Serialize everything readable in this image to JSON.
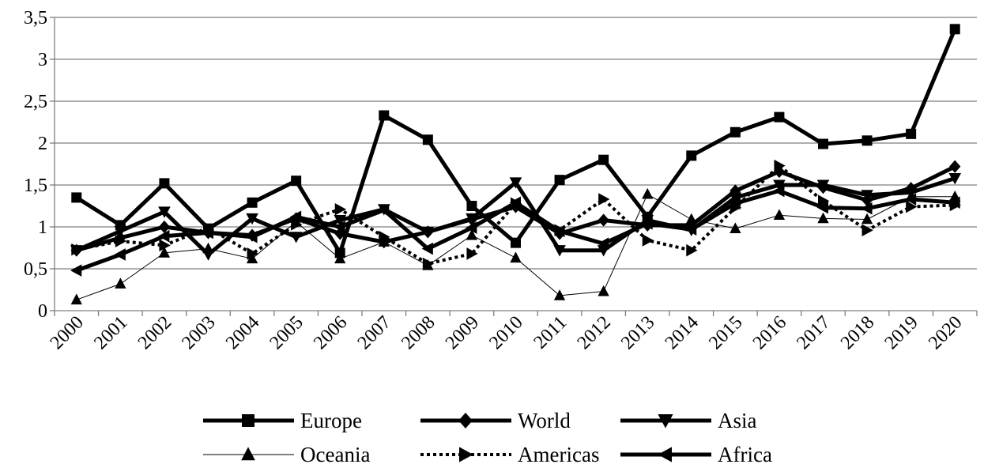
{
  "chart_data": {
    "type": "line",
    "title": "",
    "xlabel": "",
    "ylabel": "",
    "categories": [
      "2000",
      "2001",
      "2002",
      "2003",
      "2004",
      "2005",
      "2006",
      "2007",
      "2008",
      "2009",
      "2010",
      "2011",
      "2012",
      "2013",
      "2014",
      "2015",
      "2016",
      "2017",
      "2018",
      "2019",
      "2020"
    ],
    "ylim": [
      0,
      3.5
    ],
    "yticks": [
      0,
      0.5,
      1,
      1.5,
      2,
      2.5,
      3,
      3.5
    ],
    "ytick_labels": [
      "0",
      "0,5",
      "1",
      "1,5",
      "2",
      "2,5",
      "3",
      "3,5"
    ],
    "grid": "horizontal",
    "legend_position": "bottom",
    "series": [
      {
        "name": "Europe",
        "marker": "square",
        "line": "thick",
        "values": [
          1.35,
          1.02,
          1.52,
          0.98,
          1.29,
          1.55,
          0.69,
          2.33,
          2.04,
          1.25,
          0.81,
          1.56,
          1.8,
          1.12,
          1.85,
          2.13,
          2.31,
          1.99,
          2.03,
          2.11,
          3.36
        ]
      },
      {
        "name": "World",
        "marker": "diamond",
        "line": "thick",
        "values": [
          0.72,
          0.87,
          1.0,
          0.93,
          0.9,
          1.1,
          0.92,
          0.82,
          0.94,
          1.09,
          1.24,
          0.92,
          1.08,
          1.02,
          1.02,
          1.43,
          1.66,
          1.47,
          1.32,
          1.46,
          1.72
        ]
      },
      {
        "name": "Asia",
        "marker": "triangle-down",
        "line": "thick",
        "values": [
          0.72,
          0.95,
          1.18,
          0.67,
          1.1,
          0.88,
          1.08,
          1.21,
          0.94,
          1.1,
          1.53,
          0.72,
          0.72,
          1.08,
          0.96,
          1.35,
          1.5,
          1.5,
          1.38,
          1.41,
          1.58
        ]
      },
      {
        "name": "Oceania",
        "marker": "triangle-up",
        "line": "thin",
        "values": [
          0.13,
          0.32,
          0.69,
          0.74,
          0.62,
          1.06,
          0.62,
          0.82,
          0.54,
          0.9,
          0.63,
          0.18,
          0.23,
          1.39,
          1.09,
          0.98,
          1.14,
          1.1,
          1.09,
          1.36,
          1.36
        ]
      },
      {
        "name": "Americas",
        "marker": "triangle-right",
        "line": "dotted",
        "values": [
          0.73,
          0.83,
          0.78,
          0.99,
          0.68,
          1.03,
          1.21,
          0.88,
          0.56,
          0.68,
          1.28,
          0.96,
          1.33,
          0.84,
          0.72,
          1.23,
          1.73,
          1.31,
          0.96,
          1.24,
          1.26
        ]
      },
      {
        "name": "Africa",
        "marker": "triangle-left",
        "line": "thick",
        "values": [
          0.48,
          0.67,
          0.89,
          0.93,
          0.88,
          1.12,
          1.0,
          1.2,
          0.74,
          0.99,
          1.29,
          0.95,
          0.8,
          1.04,
          0.97,
          1.28,
          1.43,
          1.23,
          1.22,
          1.33,
          1.29
        ]
      }
    ]
  }
}
